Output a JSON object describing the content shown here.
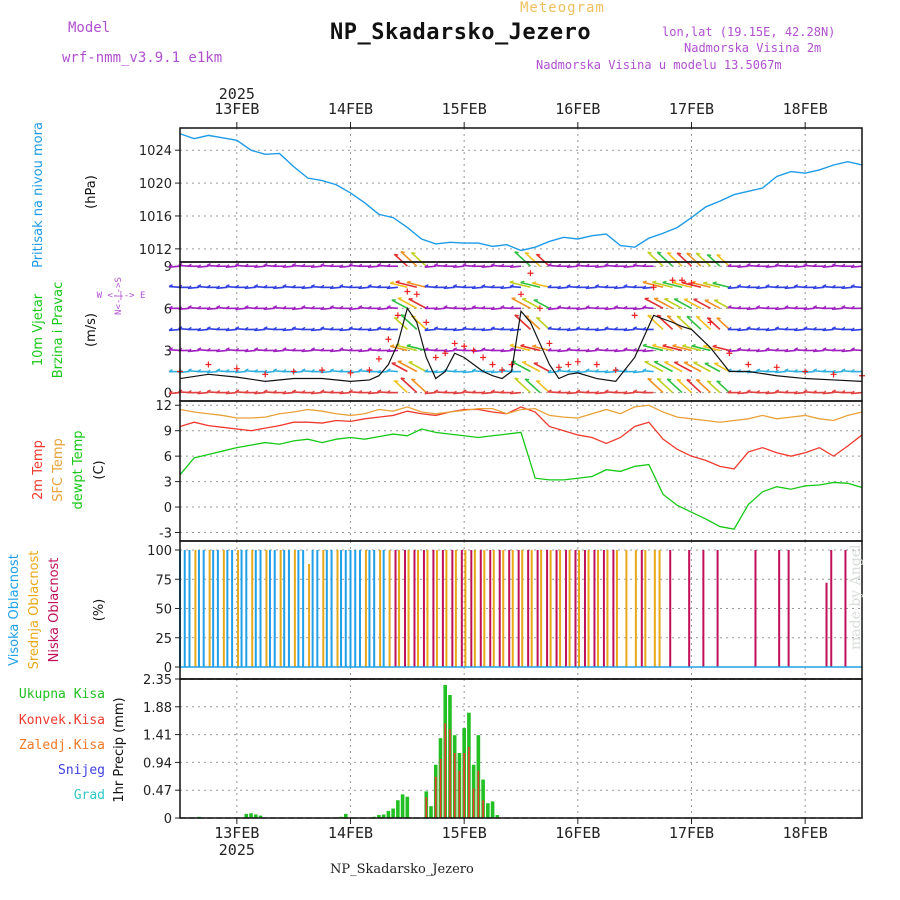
{
  "header": {
    "subtitle": "Meteogram",
    "title": "NP_Skadarsko_Jezero",
    "model_label": "Model",
    "model_value": "wrf-nmm_v3.9.1 e1km",
    "location_line1": "lon,lat (19.15E, 42.28N)",
    "location_line2": "Nadmorska Visina 2m",
    "location_line3": "Nadmorska Visina u modelu 13.5067m",
    "footer_station": "NP_Skadarsko_Jezero",
    "credit": "made by Angel"
  },
  "colors": {
    "pressure": "#1e9be6",
    "temp2m": "#ee3a2e",
    "sfc_temp": "#e8a23a",
    "dewpt": "#18c818",
    "high_cloud": "#20a0e8",
    "mid_cloud": "#e8a818",
    "low_cloud": "#c0105a",
    "total_precip": "#22c022",
    "conv_precip": "#ee3a2e",
    "frozen": "#f07828",
    "snow": "#4040e0",
    "grad": "#30c8c8",
    "wind_line": "#111111",
    "gust_marker": "#ee2222"
  },
  "chart_data": [
    {
      "type": "line",
      "panel": "pressure",
      "top_axis_year": "2025",
      "x_ticks": [
        "13FEB",
        "14FEB",
        "15FEB",
        "16FEB",
        "17FEB",
        "18FEB"
      ],
      "ylabel_color": "Pritisak na nivou mora",
      "ylabel_unit": "(hPa)",
      "yticks": [
        "1012",
        "1016",
        "1020",
        "1024"
      ],
      "ylim": [
        1010.4,
        1026.7
      ],
      "x_hours": [
        0,
        3,
        6,
        9,
        12,
        15,
        18,
        21,
        24,
        27,
        30,
        33,
        36,
        39,
        42,
        45,
        48,
        51,
        54,
        57,
        60,
        63,
        66,
        69,
        72,
        75,
        78,
        81,
        84,
        87,
        90,
        93,
        96,
        99,
        102,
        105,
        108,
        111,
        114,
        117,
        120,
        123,
        126,
        129,
        132,
        135,
        138,
        141,
        144
      ],
      "values": [
        1026.0,
        1025.4,
        1025.8,
        1025.5,
        1025.2,
        1024.0,
        1023.5,
        1023.6,
        1022.0,
        1020.6,
        1020.3,
        1019.8,
        1018.8,
        1017.6,
        1016.2,
        1015.8,
        1014.6,
        1013.2,
        1012.6,
        1012.8,
        1012.7,
        1012.7,
        1012.3,
        1012.5,
        1011.8,
        1012.2,
        1012.9,
        1013.4,
        1013.2,
        1013.6,
        1013.8,
        1012.4,
        1012.2,
        1013.3,
        1013.9,
        1014.6,
        1015.8,
        1017.1,
        1017.8,
        1018.6,
        1019.0,
        1019.4,
        1020.8,
        1021.4,
        1021.2,
        1021.6,
        1022.2,
        1022.6,
        1022.2
      ]
    },
    {
      "type": "line",
      "panel": "wind",
      "ylabel_color": "10m Vjetar",
      "ylabel_color2": "Brzina i Pravac",
      "ylabel_unit": "(m/s)",
      "compass": "W <-|-> E",
      "compass_vertical": "N<-|->S",
      "yticks": [
        "0",
        "3",
        "6",
        "9"
      ],
      "ylim": [
        -0.6,
        9.3
      ],
      "x_hours": [
        0,
        6,
        12,
        18,
        24,
        30,
        36,
        40,
        42,
        44,
        46,
        48,
        50,
        52,
        54,
        56,
        58,
        60,
        62,
        64,
        66,
        68,
        70,
        72,
        74,
        76,
        78,
        80,
        82,
        84,
        88,
        92,
        96,
        100,
        104,
        106,
        108,
        112,
        116,
        120,
        126,
        132,
        138,
        144
      ],
      "speed": [
        1.0,
        1.3,
        1.1,
        0.8,
        1.0,
        1.0,
        0.8,
        0.9,
        1.2,
        2.0,
        3.5,
        6.0,
        5.0,
        2.5,
        1.0,
        1.5,
        2.8,
        2.5,
        2.0,
        1.5,
        1.2,
        1.0,
        1.5,
        5.8,
        5.0,
        3.5,
        2.0,
        1.0,
        1.3,
        1.4,
        1.0,
        0.8,
        2.5,
        5.5,
        5.0,
        4.7,
        4.5,
        3.2,
        1.5,
        1.5,
        1.2,
        1.0,
        0.9,
        0.8
      ],
      "gusts": [
        1.5,
        2.0,
        1.7,
        1.3,
        1.5,
        1.6,
        1.4,
        1.6,
        2.4,
        3.8,
        5.5,
        7.2,
        7.0,
        5.0,
        2.5,
        2.8,
        3.5,
        3.3,
        3.0,
        2.5,
        2.0,
        1.6,
        2.0,
        7.0,
        8.5,
        6.0,
        3.5,
        1.8,
        2.0,
        2.2,
        2.0,
        1.6,
        5.5,
        7.5,
        8.0,
        8.0,
        7.8,
        5.0,
        2.8,
        2.0,
        1.8,
        1.5,
        1.3,
        1.2
      ],
      "vector_rows": [
        0,
        1.5,
        3,
        4.5,
        6,
        7.5,
        9
      ]
    },
    {
      "type": "line",
      "panel": "temperature",
      "ylabel_lines": [
        "2m Temp",
        "SFC Temp",
        "dewpt Temp"
      ],
      "ylabel_unit": "(C)",
      "yticks": [
        "-3",
        "0",
        "3",
        "6",
        "9",
        "12"
      ],
      "ylim": [
        -4.0,
        12.5
      ],
      "x_hours": [
        0,
        3,
        6,
        9,
        12,
        15,
        18,
        21,
        24,
        27,
        30,
        33,
        36,
        39,
        42,
        45,
        48,
        51,
        54,
        57,
        60,
        63,
        66,
        69,
        72,
        75,
        78,
        81,
        84,
        87,
        90,
        93,
        96,
        99,
        102,
        105,
        108,
        111,
        114,
        117,
        120,
        123,
        126,
        129,
        132,
        135,
        138,
        141,
        144
      ],
      "series": [
        {
          "name": "2m Temp",
          "values": [
            9.5,
            10.0,
            9.6,
            9.4,
            9.2,
            9.0,
            9.3,
            9.6,
            10.0,
            10.0,
            9.9,
            10.2,
            10.1,
            10.4,
            10.6,
            10.8,
            11.3,
            11.0,
            10.8,
            11.2,
            11.5,
            11.5,
            11.2,
            11.0,
            11.8,
            11.2,
            9.5,
            9.0,
            8.5,
            8.2,
            7.5,
            8.2,
            9.5,
            10.0,
            8.0,
            6.8,
            6.0,
            5.5,
            4.8,
            4.5,
            6.5,
            7.0,
            6.4,
            6.0,
            6.4,
            7.0,
            6.0,
            7.2,
            8.5
          ]
        },
        {
          "name": "SFC Temp",
          "values": [
            11.5,
            11.2,
            11.0,
            10.8,
            10.5,
            10.5,
            10.6,
            11.0,
            11.2,
            11.5,
            11.3,
            11.0,
            10.8,
            11.0,
            11.5,
            11.3,
            11.8,
            11.2,
            11.0,
            11.2,
            11.4,
            11.6,
            11.6,
            11.0,
            11.5,
            11.6,
            10.8,
            10.6,
            10.5,
            11.0,
            11.5,
            11.0,
            11.8,
            12.0,
            11.2,
            10.6,
            10.4,
            10.2,
            10.0,
            10.2,
            10.4,
            10.8,
            10.4,
            10.6,
            10.8,
            10.4,
            10.2,
            10.8,
            11.2
          ]
        },
        {
          "name": "dewpt Temp",
          "values": [
            3.8,
            5.8,
            6.2,
            6.6,
            7.0,
            7.3,
            7.6,
            7.4,
            7.8,
            8.0,
            7.6,
            8.0,
            8.2,
            8.0,
            8.3,
            8.6,
            8.4,
            9.2,
            8.8,
            8.6,
            8.4,
            8.2,
            8.4,
            8.6,
            8.8,
            3.4,
            3.2,
            3.2,
            3.4,
            3.6,
            4.4,
            4.2,
            4.8,
            5.0,
            1.5,
            0.2,
            -0.6,
            -1.4,
            -2.3,
            -2.6,
            0.3,
            1.8,
            2.4,
            2.1,
            2.5,
            2.6,
            2.9,
            2.8,
            2.3
          ]
        }
      ]
    },
    {
      "type": "bar",
      "panel": "cloud_cover",
      "ylabel_lines": [
        "Visoka Oblacnost",
        "Srednja Oblacnost",
        "Niska Oblacnost"
      ],
      "ylabel_unit": "(%)",
      "yticks": [
        "0",
        "25",
        "50",
        "75",
        "100"
      ],
      "ylim": [
        0,
        100
      ],
      "series": [
        {
          "name": "Visoka Oblacnost",
          "x_hours": [
            0,
            1,
            2,
            4,
            5,
            7,
            8,
            10,
            11,
            13,
            14,
            16,
            17,
            19,
            20,
            22,
            23,
            25,
            26,
            28,
            29,
            31,
            32,
            34,
            35,
            36,
            37,
            38,
            40,
            41,
            43
          ],
          "values": [
            100,
            100,
            100,
            100,
            100,
            100,
            100,
            100,
            100,
            100,
            100,
            100,
            100,
            100,
            100,
            100,
            100,
            100,
            100,
            100,
            100,
            100,
            100,
            100,
            100,
            100,
            100,
            100,
            100,
            100,
            100
          ]
        },
        {
          "name": "Srednja Oblacnost",
          "x_hours": [
            3,
            6,
            9,
            12,
            15,
            18,
            21,
            24,
            27,
            30,
            33,
            39,
            42,
            44,
            46,
            48,
            50,
            52,
            54,
            56,
            58,
            60,
            62,
            64,
            66,
            68,
            70,
            72,
            74,
            76,
            78,
            80,
            82,
            84,
            86,
            88,
            90,
            92,
            94,
            96,
            98,
            100,
            101
          ],
          "values": [
            100,
            100,
            100,
            100,
            100,
            100,
            100,
            100,
            88,
            100,
            100,
            100,
            100,
            100,
            100,
            100,
            100,
            100,
            100,
            100,
            100,
            100,
            100,
            100,
            100,
            100,
            100,
            100,
            100,
            100,
            100,
            100,
            100,
            100,
            100,
            100,
            100,
            100,
            100,
            100,
            100,
            100,
            100
          ]
        },
        {
          "name": "Niska Oblacnost",
          "x_hours": [
            45,
            47,
            49,
            51,
            53,
            55,
            57,
            59,
            61,
            63,
            65,
            67,
            69,
            71,
            73,
            75,
            77,
            79,
            81,
            83,
            85,
            87,
            89,
            91,
            97,
            103,
            107,
            110,
            113,
            121,
            126,
            128,
            136,
            137,
            140
          ],
          "values": [
            100,
            100,
            100,
            100,
            100,
            100,
            100,
            100,
            100,
            100,
            100,
            100,
            100,
            100,
            100,
            100,
            100,
            100,
            100,
            100,
            100,
            100,
            100,
            100,
            100,
            100,
            100,
            100,
            100,
            100,
            100,
            100,
            72,
            100,
            100
          ]
        }
      ]
    },
    {
      "type": "bar",
      "panel": "precipitation",
      "legend": [
        "Ukupna Kisa",
        "Konvek.Kisa",
        "Zaledj.Kisa",
        "Snijeg",
        "Grad"
      ],
      "ylabel_unit": "1hr Precip (mm)",
      "yticks": [
        "0",
        "0.47",
        "0.94",
        "1.41",
        "1.88",
        "2.35"
      ],
      "ylim": [
        0,
        2.35
      ],
      "x_ticks_bottom": [
        "13FEB",
        "14FEB",
        "15FEB",
        "16FEB",
        "17FEB",
        "18FEB"
      ],
      "bottom_axis_year": "2025",
      "x_hours": [
        4,
        14,
        15,
        16,
        17,
        34,
        35,
        41,
        42,
        43,
        44,
        45,
        46,
        47,
        48,
        52,
        53,
        54,
        55,
        56,
        57,
        58,
        59,
        60,
        61,
        62,
        63,
        64,
        65,
        66,
        67
      ],
      "total": [
        0.02,
        0.07,
        0.08,
        0.06,
        0.04,
        0.02,
        0.07,
        0.02,
        0.05,
        0.06,
        0.12,
        0.16,
        0.3,
        0.4,
        0.36,
        0.45,
        0.2,
        0.9,
        1.35,
        2.25,
        2.08,
        1.4,
        1.1,
        1.52,
        1.78,
        0.9,
        1.4,
        0.65,
        0.25,
        0.28,
        0.05
      ],
      "convective": [
        0.0,
        0.0,
        0.0,
        0.0,
        0.0,
        0.0,
        0.0,
        0.0,
        0.0,
        0.0,
        0.0,
        0.0,
        0.0,
        0.0,
        0.0,
        0.35,
        0.0,
        0.7,
        1.0,
        1.6,
        1.5,
        1.1,
        0.8,
        1.1,
        1.2,
        0.5,
        0.8,
        0.3,
        0.0,
        0.0,
        0.0
      ]
    }
  ]
}
